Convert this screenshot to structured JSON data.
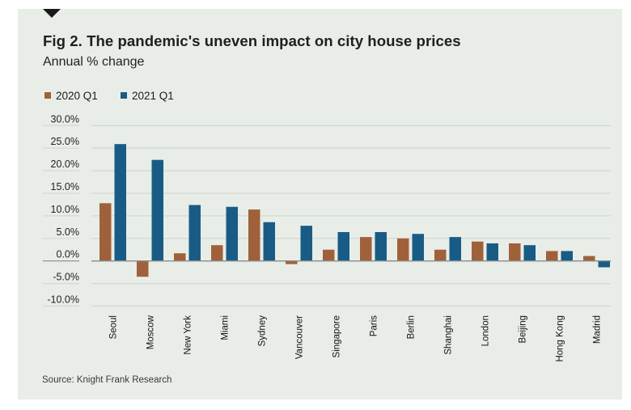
{
  "header": {
    "title": "Fig 2. The pandemic's uneven impact on city house prices",
    "subtitle": "Annual % change"
  },
  "legend": [
    {
      "label": "2020 Q1",
      "color": "#a0613a"
    },
    {
      "label": "2021 Q1",
      "color": "#185c86"
    }
  ],
  "source": "Source: Knight Frank Research",
  "colors": {
    "panel_background": "#e8ede8",
    "gridline": "#d3d8d3",
    "zero_line": "#8a8a8a",
    "series_2020": "#a0613a",
    "series_2021": "#185c86"
  },
  "chart_data": {
    "type": "bar",
    "title": "Fig 2. The pandemic's uneven impact on city house prices",
    "subtitle": "Annual % change",
    "xlabel": "",
    "ylabel": "",
    "ylim": [
      -10,
      30
    ],
    "yticks": [
      30,
      25,
      20,
      15,
      10,
      5,
      0,
      -5,
      -10
    ],
    "ytick_labels": [
      "30.0%",
      "25.0%",
      "20.0%",
      "15.0%",
      "10.0%",
      "5.0%",
      "0.0%",
      "-5.0%",
      "-10.0%"
    ],
    "grid": true,
    "legend_position": "top-left",
    "categories": [
      "Seoul",
      "Moscow",
      "New York",
      "Miami",
      "Sydney",
      "Vancouver",
      "Singapore",
      "Paris",
      "Berlin",
      "Shanghai",
      "London",
      "Beijing",
      "Hong Kong",
      "Madrid"
    ],
    "series": [
      {
        "name": "2020 Q1",
        "color": "#a0613a",
        "values": [
          12.8,
          -3.5,
          1.7,
          3.5,
          11.4,
          -0.7,
          2.5,
          5.3,
          5.0,
          2.5,
          4.3,
          3.9,
          2.2,
          1.1
        ]
      },
      {
        "name": "2021 Q1",
        "color": "#185c86",
        "values": [
          25.9,
          22.4,
          12.4,
          12.0,
          8.6,
          7.8,
          6.4,
          6.4,
          6.0,
          5.3,
          3.9,
          3.5,
          2.2,
          -1.4
        ]
      }
    ],
    "source": "Source: Knight Frank Research"
  }
}
